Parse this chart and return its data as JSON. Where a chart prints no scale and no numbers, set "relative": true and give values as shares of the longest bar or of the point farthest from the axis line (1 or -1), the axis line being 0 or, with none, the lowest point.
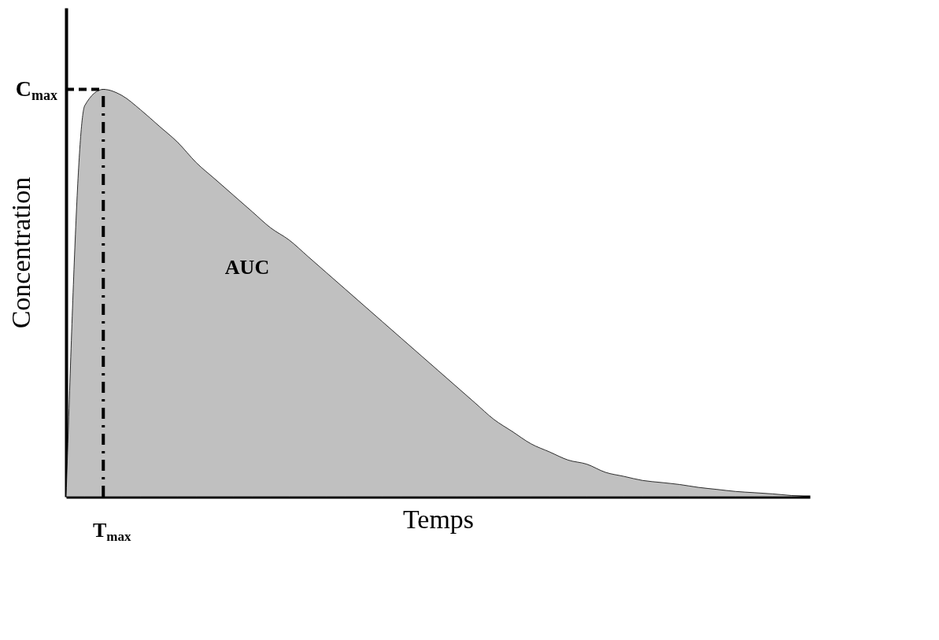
{
  "chart_data": {
    "type": "area",
    "relative": true,
    "xlabel": "Temps",
    "ylabel": "Concentration",
    "categories": [
      null,
      null,
      null,
      null,
      null,
      null,
      null,
      null,
      null,
      null,
      null,
      null,
      null,
      null,
      null,
      null,
      null,
      null,
      null,
      null,
      null,
      null,
      null,
      null,
      null,
      null,
      null,
      null,
      null,
      null,
      null,
      null,
      null,
      null,
      null,
      null,
      null,
      null,
      null,
      null,
      null
    ],
    "series": [
      {
        "color": "#c0c0c0",
        "values": [
          0,
          0.96,
          1,
          0.985,
          0.95,
          0.91,
          0.87,
          0.82,
          0.78,
          0.74,
          0.7,
          0.66,
          0.63,
          0.59,
          0.55,
          0.51,
          0.47,
          0.43,
          0.39,
          0.35,
          0.31,
          0.27,
          0.23,
          0.19,
          0.16,
          0.13,
          0.11,
          0.09,
          0.08,
          0.06,
          0.05,
          0.04,
          0.035,
          0.03,
          0.023,
          0.018,
          0.013,
          0.01,
          0.007,
          0.003,
          0
        ]
      }
    ],
    "ref_lines": [
      {
        "axis": "y",
        "value": 1,
        "label": "C$_{max}$",
        "line_style": "dashed"
      }
    ],
    "annotations": [
      "AUC",
      "T$_{max}$"
    ]
  }
}
